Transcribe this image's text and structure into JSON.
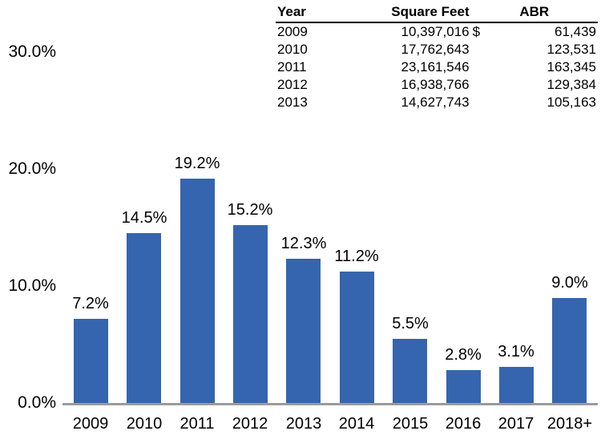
{
  "table": {
    "headers": {
      "year": "Year",
      "square_feet": "Square Feet",
      "abr": "ABR"
    },
    "rows": [
      {
        "year": "2009",
        "square_feet": "10,397,016",
        "currency": "$",
        "abr": "61,439"
      },
      {
        "year": "2010",
        "square_feet": "17,762,643",
        "currency": "",
        "abr": "123,531"
      },
      {
        "year": "2011",
        "square_feet": "23,161,546",
        "currency": "",
        "abr": "163,345"
      },
      {
        "year": "2012",
        "square_feet": "16,938,766",
        "currency": "",
        "abr": "129,384"
      },
      {
        "year": "2013",
        "square_feet": "14,627,743",
        "currency": "",
        "abr": "105,163"
      }
    ]
  },
  "chart_data": {
    "type": "bar",
    "title": "",
    "xlabel": "",
    "ylabel": "",
    "categories": [
      "2009",
      "2010",
      "2011",
      "2012",
      "2013",
      "2014",
      "2015",
      "2016",
      "2017",
      "2018+"
    ],
    "values": [
      7.2,
      14.5,
      19.2,
      15.2,
      12.3,
      11.2,
      5.5,
      2.8,
      3.1,
      9.0
    ],
    "data_labels": [
      "7.2%",
      "14.5%",
      "19.2%",
      "15.2%",
      "12.3%",
      "11.2%",
      "5.5%",
      "2.8%",
      "3.1%",
      "9.0%"
    ],
    "y_ticks": [
      {
        "value": 0,
        "label": "0.0%"
      },
      {
        "value": 10,
        "label": "10.0%"
      },
      {
        "value": 20,
        "label": "20.0%"
      },
      {
        "value": 30,
        "label": "30.0%"
      }
    ],
    "ylim": [
      0,
      30
    ],
    "grid": false,
    "legend": false,
    "bar_color": "#3565AE",
    "axis_color": "#9b9b9b",
    "text_color": "#000000"
  }
}
